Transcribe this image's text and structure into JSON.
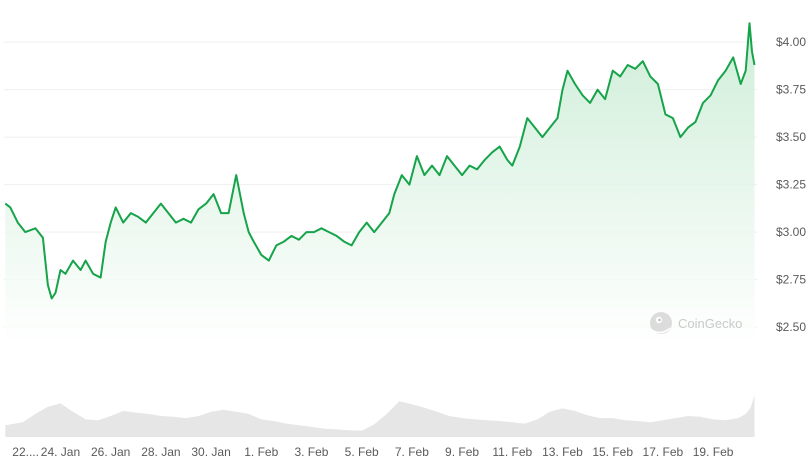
{
  "colors": {
    "line": "#16a34a",
    "area_top": "#c7ebd2",
    "area_bottom": "#ffffff",
    "volume": "#e6e6e6",
    "grid": "#efefef",
    "tick_text": "#5a5a5a",
    "watermark": "#c9c9c9"
  },
  "watermark": {
    "text": "CoinGecko",
    "icon": "gecko-logo-icon"
  },
  "chart_data": {
    "type": "area",
    "title": "",
    "xlabel": "",
    "ylabel": "",
    "y_axis_position": "right",
    "grid": true,
    "legend": "none",
    "ylim": [
      2.4,
      4.18
    ],
    "y_ticks": [
      "$2.50",
      "$2.75",
      "$3.00",
      "$3.25",
      "$3.50",
      "$3.75",
      "$4.00"
    ],
    "y_tick_values": [
      2.5,
      2.75,
      3.0,
      3.25,
      3.5,
      3.75,
      4.0
    ],
    "x_ticks": [
      "22....",
      "24. Jan",
      "26. Jan",
      "28. Jan",
      "30. Jan",
      "1. Feb",
      "3. Feb",
      "5. Feb",
      "7. Feb",
      "9. Feb",
      "11. Feb",
      "13. Feb",
      "15. Feb",
      "17. Feb",
      "19. Feb"
    ],
    "x_tick_days": [
      0,
      2,
      4,
      6,
      8,
      10,
      12,
      14,
      16,
      18,
      20,
      22,
      24,
      26,
      28
    ],
    "x_range_days": [
      -0.25,
      29.75
    ],
    "series": [
      {
        "x": [
          -0.2,
          0.0,
          0.3,
          0.6,
          1.0,
          1.3,
          1.5,
          1.65,
          1.8,
          2.0,
          2.2,
          2.5,
          2.8,
          3.0,
          3.3,
          3.6,
          3.8,
          4.0,
          4.2,
          4.5,
          4.8,
          5.1,
          5.4,
          5.7,
          6.0,
          6.3,
          6.6,
          6.9,
          7.2,
          7.5,
          7.8,
          8.1,
          8.4,
          8.7,
          9.0,
          9.3,
          9.5,
          9.7,
          10.0,
          10.3,
          10.6,
          10.9,
          11.2,
          11.5,
          11.8,
          12.1,
          12.4,
          12.7,
          13.0,
          13.3,
          13.6,
          13.9,
          14.2,
          14.5,
          14.8,
          15.1,
          15.3,
          15.6,
          15.9,
          16.2,
          16.5,
          16.8,
          17.1,
          17.4,
          17.7,
          18.0,
          18.3,
          18.6,
          18.9,
          19.2,
          19.5,
          19.8,
          20.0,
          20.3,
          20.6,
          20.9,
          21.2,
          21.5,
          21.8,
          22.0,
          22.2,
          22.5,
          22.8,
          23.1,
          23.4,
          23.7,
          24.0,
          24.3,
          24.6,
          24.9,
          25.2,
          25.5,
          25.8,
          26.1,
          26.4,
          26.7,
          27.0,
          27.3,
          27.6,
          27.9,
          28.2,
          28.5,
          28.8,
          29.1,
          29.3,
          29.45,
          29.55,
          29.65
        ],
        "y": [
          3.15,
          3.13,
          3.05,
          3.0,
          3.02,
          2.97,
          2.72,
          2.65,
          2.68,
          2.8,
          2.78,
          2.85,
          2.8,
          2.85,
          2.78,
          2.76,
          2.95,
          3.05,
          3.13,
          3.05,
          3.1,
          3.08,
          3.05,
          3.1,
          3.15,
          3.1,
          3.05,
          3.07,
          3.05,
          3.12,
          3.15,
          3.2,
          3.1,
          3.1,
          3.3,
          3.1,
          3.0,
          2.95,
          2.88,
          2.85,
          2.93,
          2.95,
          2.98,
          2.96,
          3.0,
          3.0,
          3.02,
          3.0,
          2.98,
          2.95,
          2.93,
          3.0,
          3.05,
          3.0,
          3.05,
          3.1,
          3.2,
          3.3,
          3.25,
          3.4,
          3.3,
          3.35,
          3.3,
          3.4,
          3.35,
          3.3,
          3.35,
          3.33,
          3.38,
          3.42,
          3.45,
          3.38,
          3.35,
          3.45,
          3.6,
          3.55,
          3.5,
          3.55,
          3.6,
          3.75,
          3.85,
          3.78,
          3.72,
          3.68,
          3.75,
          3.7,
          3.85,
          3.82,
          3.88,
          3.86,
          3.9,
          3.82,
          3.78,
          3.62,
          3.6,
          3.5,
          3.55,
          3.58,
          3.68,
          3.72,
          3.8,
          3.85,
          3.92,
          3.78,
          3.85,
          4.1,
          3.95,
          3.88
        ]
      }
    ],
    "volume_ylim": [
      0,
      1
    ],
    "volume": {
      "x": [
        -0.2,
        0.5,
        1.0,
        1.5,
        2.0,
        2.5,
        3.0,
        3.5,
        4.0,
        4.5,
        5.0,
        5.5,
        6.0,
        6.5,
        7.0,
        7.5,
        8.0,
        8.5,
        9.0,
        9.5,
        10.0,
        10.5,
        11.0,
        11.5,
        12.0,
        12.5,
        13.0,
        13.5,
        14.0,
        14.5,
        15.0,
        15.5,
        16.0,
        16.5,
        17.0,
        17.5,
        18.0,
        18.5,
        19.0,
        19.5,
        20.0,
        20.5,
        21.0,
        21.5,
        22.0,
        22.5,
        23.0,
        23.5,
        24.0,
        24.5,
        25.0,
        25.5,
        26.0,
        26.5,
        27.0,
        27.5,
        28.0,
        28.5,
        29.0,
        29.3,
        29.5,
        29.65
      ],
      "y": [
        0.28,
        0.35,
        0.55,
        0.72,
        0.8,
        0.6,
        0.42,
        0.4,
        0.5,
        0.62,
        0.58,
        0.55,
        0.5,
        0.48,
        0.45,
        0.5,
        0.6,
        0.65,
        0.6,
        0.55,
        0.42,
        0.38,
        0.32,
        0.28,
        0.24,
        0.2,
        0.18,
        0.16,
        0.15,
        0.3,
        0.55,
        0.85,
        0.78,
        0.7,
        0.6,
        0.5,
        0.45,
        0.42,
        0.4,
        0.38,
        0.35,
        0.32,
        0.42,
        0.6,
        0.68,
        0.62,
        0.52,
        0.45,
        0.45,
        0.4,
        0.38,
        0.35,
        0.4,
        0.45,
        0.5,
        0.48,
        0.42,
        0.4,
        0.45,
        0.55,
        0.7,
        1.0
      ]
    }
  }
}
